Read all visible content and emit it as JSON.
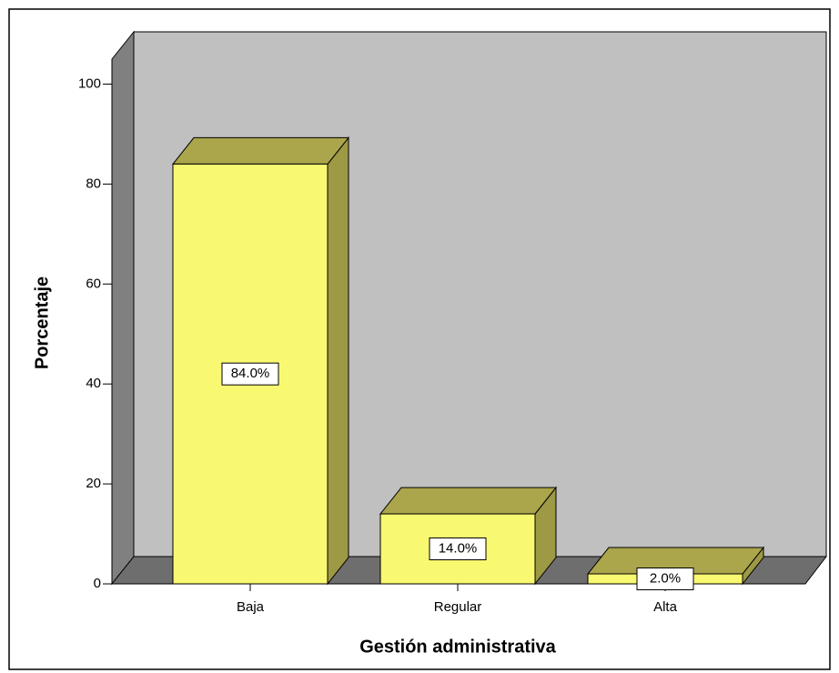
{
  "chart_data": {
    "type": "bar",
    "x_label": "Gestión administrativa",
    "y_label": "Porcentaje",
    "categories": [
      "Baja",
      "Regular",
      "Alta"
    ],
    "values": [
      84.0,
      14.0,
      2.0
    ],
    "value_labels": [
      "84.0%",
      "14.0%",
      "2.0%"
    ],
    "color": "#f9f871",
    "ylim": [
      0,
      105
    ],
    "yticks": [
      0,
      20,
      40,
      60,
      80,
      100
    ]
  }
}
